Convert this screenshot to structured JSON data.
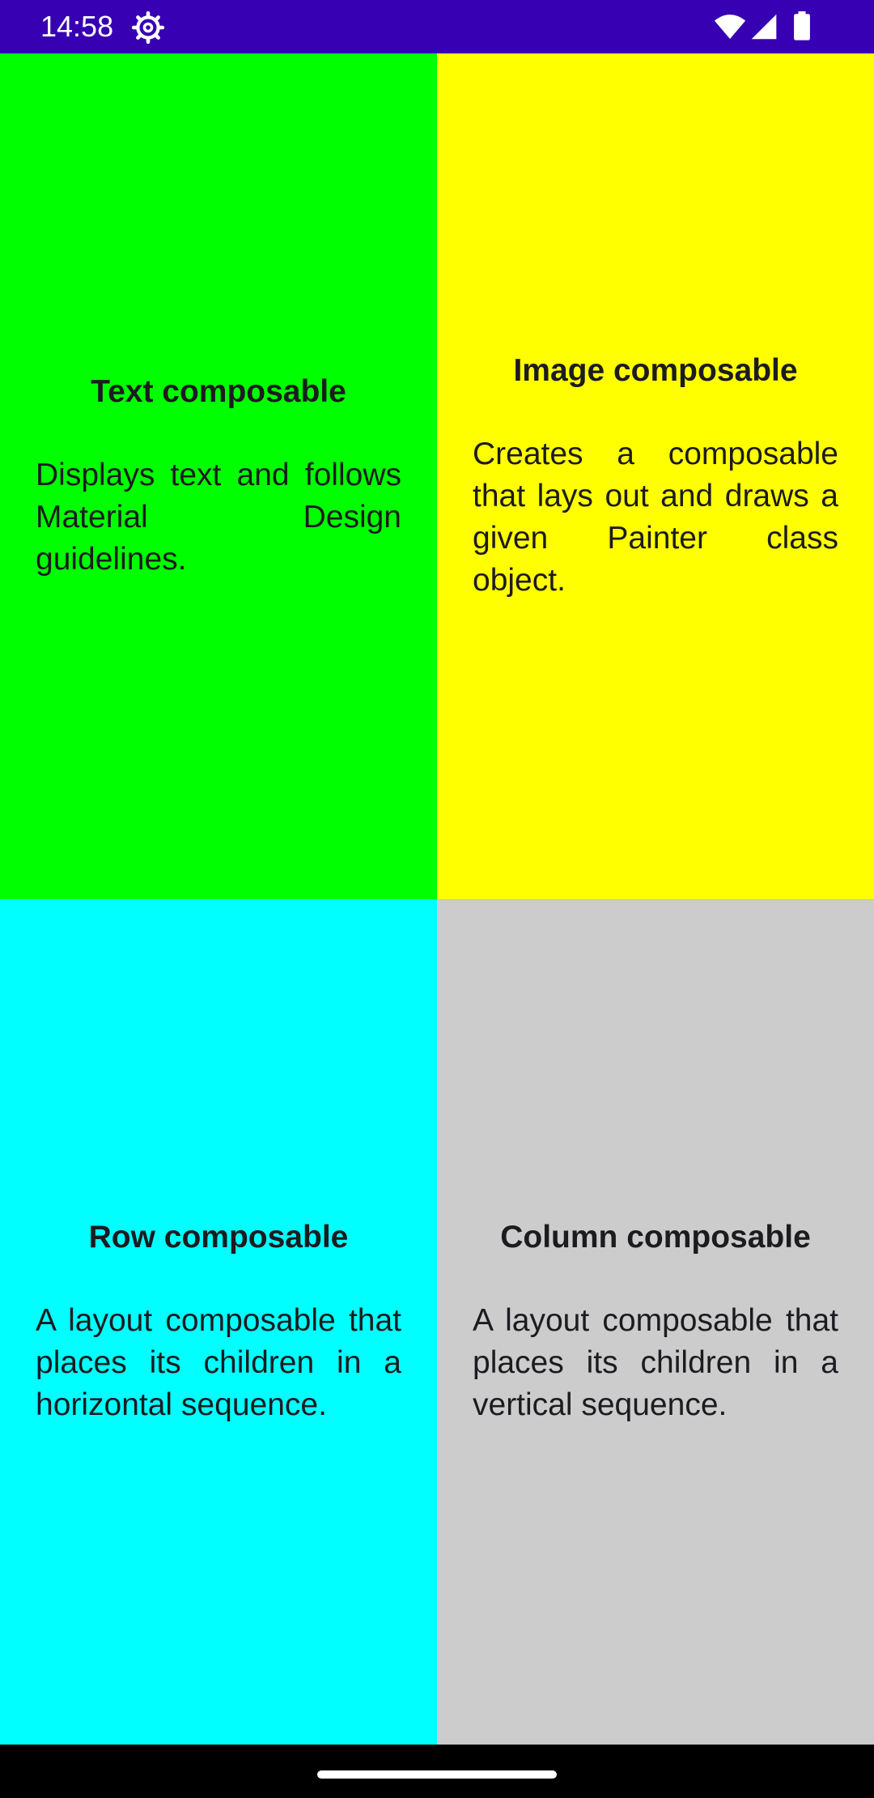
{
  "status_bar": {
    "time": "14:58",
    "background": "#3700B3",
    "icons": [
      "settings-icon",
      "wifi-icon",
      "signal-icon",
      "battery-icon"
    ]
  },
  "cards": [
    {
      "title": "Text composable",
      "description": "Displays text and follows Material Design guidelines.",
      "background": "#00FF00"
    },
    {
      "title": "Image composable",
      "description": "Creates a composable that lays out and draws a given Painter class object.",
      "background": "#FFFF00"
    },
    {
      "title": "Row composable",
      "description": "A layout composable that places its children in a horizontal sequence.",
      "background": "#00FFFF"
    },
    {
      "title": "Column composable",
      "description": "A layout composable that places its children in a vertical sequence.",
      "background": "#CCCCCC"
    }
  ],
  "nav_bar": {
    "background": "#000000",
    "handle": "home-gesture-handle"
  }
}
